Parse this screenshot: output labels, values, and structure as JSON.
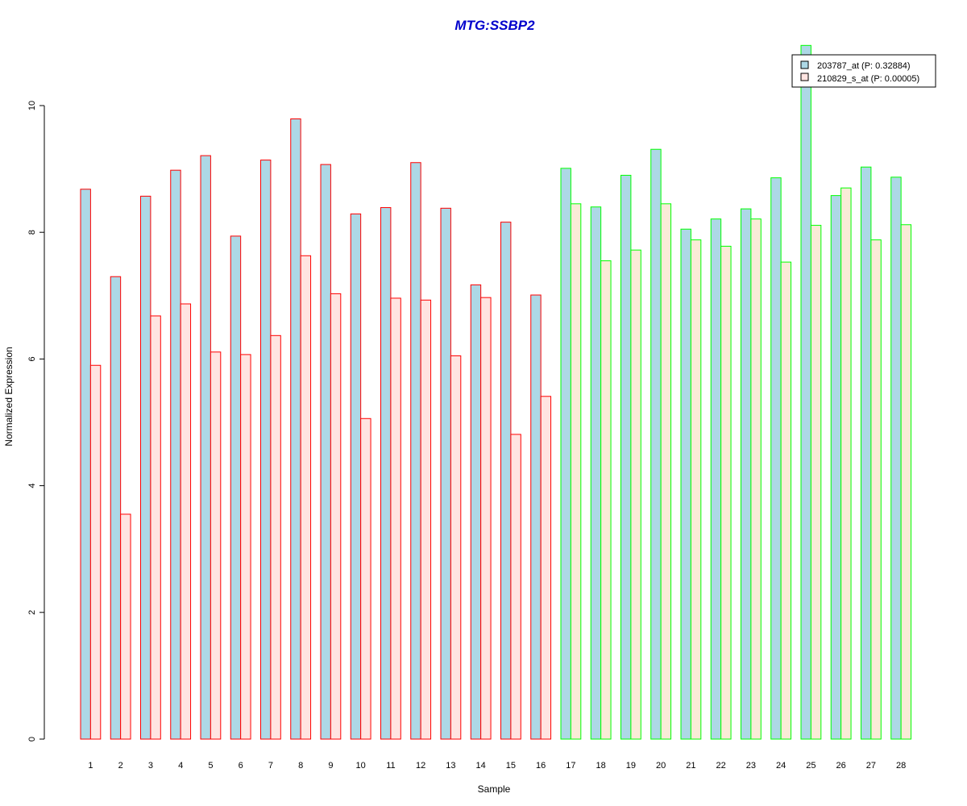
{
  "chart_data": {
    "type": "bar",
    "title": "MTG:SSBP2",
    "xlabel": "Sample",
    "ylabel": "Normalized Expression",
    "ylim": [
      0,
      10
    ],
    "y_ticks": [
      "0",
      "2",
      "4",
      "6",
      "8",
      "10"
    ],
    "categories": [
      "1",
      "2",
      "3",
      "4",
      "5",
      "6",
      "7",
      "8",
      "9",
      "10",
      "11",
      "12",
      "13",
      "14",
      "15",
      "16",
      "17",
      "18",
      "19",
      "20",
      "21",
      "22",
      "23",
      "24",
      "25",
      "26",
      "27",
      "28"
    ],
    "series": [
      {
        "name": "203787_at (P: 0.32884)",
        "fill": "#add8e6",
        "values": [
          8.68,
          7.3,
          8.57,
          8.98,
          9.21,
          7.94,
          9.14,
          9.79,
          9.07,
          8.29,
          8.39,
          9.1,
          8.38,
          7.17,
          8.16,
          7.01,
          9.01,
          8.4,
          8.9,
          9.31,
          8.05,
          8.21,
          8.37,
          8.86,
          10.95,
          8.58,
          9.03,
          8.87
        ]
      },
      {
        "name": "210829_s_at (P: 0.00005)",
        "fill_group1": "#ffe4e1",
        "fill_group2": "#faebd7",
        "values": [
          5.9,
          3.55,
          6.68,
          6.87,
          6.11,
          6.07,
          6.37,
          7.63,
          7.03,
          5.06,
          6.96,
          6.93,
          6.05,
          6.97,
          4.81,
          5.41,
          8.45,
          7.55,
          7.72,
          8.45,
          7.88,
          7.78,
          8.21,
          7.53,
          8.11,
          8.7,
          7.88,
          8.12
        ]
      }
    ],
    "group_border_colors": {
      "group1": "#ff0000",
      "group2": "#00ff00"
    },
    "group_split_after": 16,
    "title_color": "#0000cc",
    "legend_position": "top-right",
    "grid": false
  }
}
